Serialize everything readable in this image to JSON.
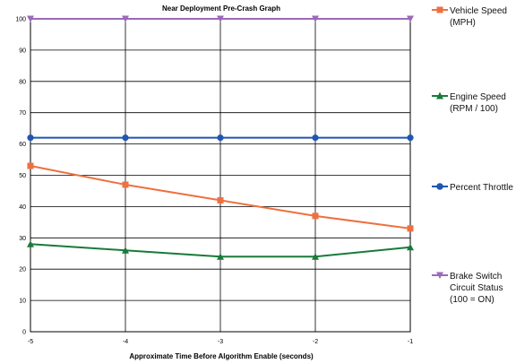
{
  "chart_data": {
    "type": "line",
    "title": "Near Deployment Pre-Crash Graph",
    "xlabel": "Approximate Time Before Algorithm Enable (seconds)",
    "ylabel": "",
    "x": [
      -5,
      -4,
      -3,
      -2,
      -1
    ],
    "xticks": [
      "-5",
      "-4",
      "-3",
      "-2",
      "-1"
    ],
    "ylim": [
      0,
      100
    ],
    "yticks": [
      "0",
      "10",
      "20",
      "30",
      "40",
      "50",
      "60",
      "70",
      "80",
      "90",
      "100"
    ],
    "grid": true,
    "legend_position": "right",
    "series": [
      {
        "name": "Vehicle Speed\n(MPH)",
        "color": "#ee7040",
        "marker": "square",
        "values": [
          53,
          47,
          42,
          37,
          33
        ]
      },
      {
        "name": "Engine Speed\n(RPM / 100)",
        "color": "#1a7a3a",
        "marker": "triangle-up",
        "values": [
          28,
          26,
          24,
          24,
          27
        ]
      },
      {
        "name": "Percent Throttle",
        "color": "#1f56b0",
        "marker": "circle",
        "values": [
          62,
          62,
          62,
          62,
          62
        ]
      },
      {
        "name": "Brake Switch\nCircuit Status\n(100 = ON)",
        "color": "#9b6ab8",
        "marker": "triangle-down",
        "values": [
          100,
          100,
          100,
          100,
          100
        ]
      }
    ]
  }
}
